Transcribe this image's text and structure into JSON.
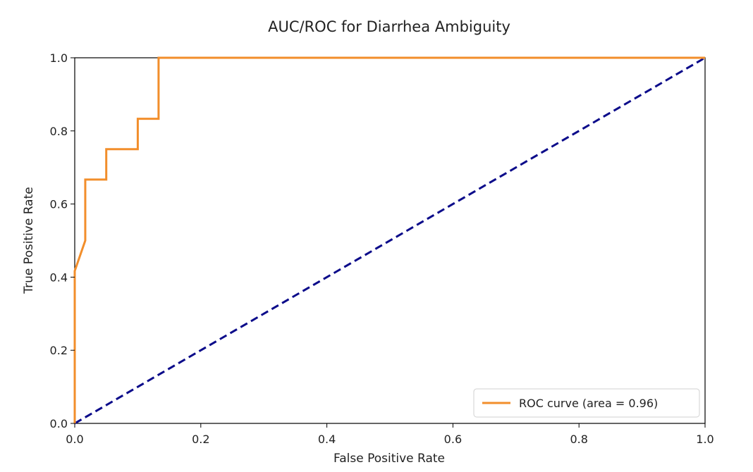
{
  "chart_data": {
    "type": "line",
    "title": "AUC/ROC for Diarrhea Ambiguity",
    "xlabel": "False Positive Rate",
    "ylabel": "True Positive Rate",
    "xlim": [
      0.0,
      1.0
    ],
    "ylim": [
      0.0,
      1.0
    ],
    "xticks": [
      0.0,
      0.2,
      0.4,
      0.6,
      0.8,
      1.0
    ],
    "yticks": [
      0.0,
      0.2,
      0.4,
      0.6,
      0.8,
      1.0
    ],
    "xtick_labels": [
      "0.0",
      "0.2",
      "0.4",
      "0.6",
      "0.8",
      "1.0"
    ],
    "ytick_labels": [
      "0.0",
      "0.2",
      "0.4",
      "0.6",
      "0.8",
      "1.0"
    ],
    "grid": false,
    "legend_position": "lower-right",
    "series": [
      {
        "name": "ROC curve (area = 0.96)",
        "color": "#f28e2b",
        "style": "solid",
        "x": [
          0.0,
          0.0,
          0.0167,
          0.0167,
          0.05,
          0.05,
          0.1,
          0.1,
          0.133,
          0.133,
          1.0
        ],
        "y": [
          0.0,
          0.417,
          0.5,
          0.667,
          0.667,
          0.75,
          0.75,
          0.833,
          0.833,
          1.0,
          1.0
        ]
      },
      {
        "color": "#0b0b8a",
        "style": "dashed",
        "x": [
          0.0,
          1.0
        ],
        "y": [
          0.0,
          1.0
        ]
      }
    ]
  }
}
